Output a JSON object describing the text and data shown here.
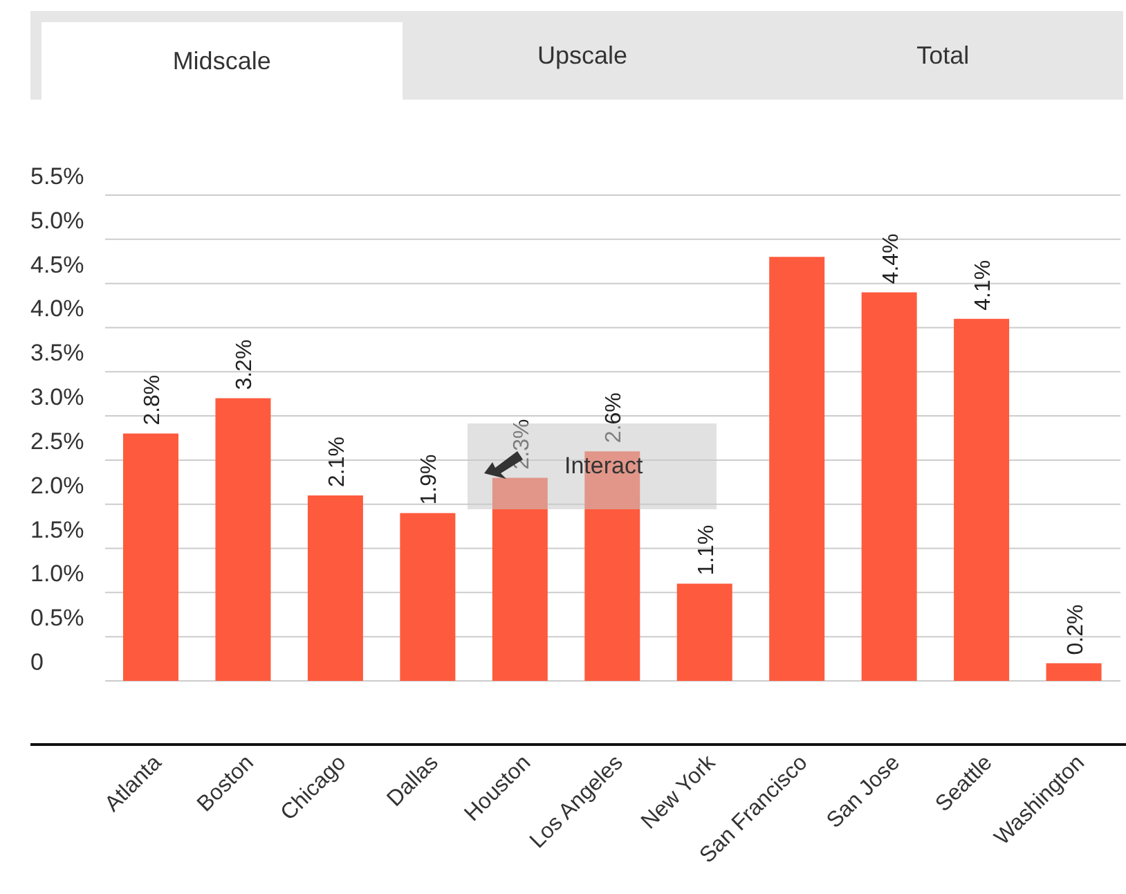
{
  "chart_data": {
    "type": "bar",
    "categories": [
      "Atlanta",
      "Boston",
      "Chicago",
      "Dallas",
      "Houston",
      "Los Angeles",
      "New York",
      "San Francisco",
      "San Jose",
      "Seattle",
      "Washington"
    ],
    "values": [
      2.8,
      3.2,
      2.1,
      1.9,
      2.3,
      2.6,
      1.1,
      4.8,
      4.4,
      4.1,
      0.2
    ],
    "value_labels": [
      "2.8%",
      "3.2%",
      "2.1%",
      "1.9%",
      "2.3%",
      "2.6%",
      "1.1%",
      null,
      "4.4%",
      "4.1%",
      "0.2%"
    ],
    "color": "#fe5a3d",
    "ylim": [
      0,
      5.5
    ],
    "yticks": [
      0,
      {
        "value": 0.5,
        "label": "0.5%"
      },
      {
        "value": 1,
        "label": "1.0%"
      },
      {
        "value": 1.5,
        "label": "1.5%"
      },
      {
        "value": 2,
        "label": "2.0%"
      },
      {
        "value": 2.5,
        "label": "2.5%"
      },
      {
        "value": 3,
        "label": "3.0%"
      },
      {
        "value": 3.5,
        "label": "3.5%"
      },
      {
        "value": 4,
        "label": "4.0%"
      },
      {
        "value": 4.5,
        "label": "4.5%"
      },
      {
        "value": 5,
        "label": "5.0%"
      },
      {
        "value": 5.5,
        "label": "5.5%"
      }
    ],
    "grid": "y",
    "annotations": [
      "Midscale",
      "Upscale",
      "Total",
      "Interact"
    ]
  }
}
